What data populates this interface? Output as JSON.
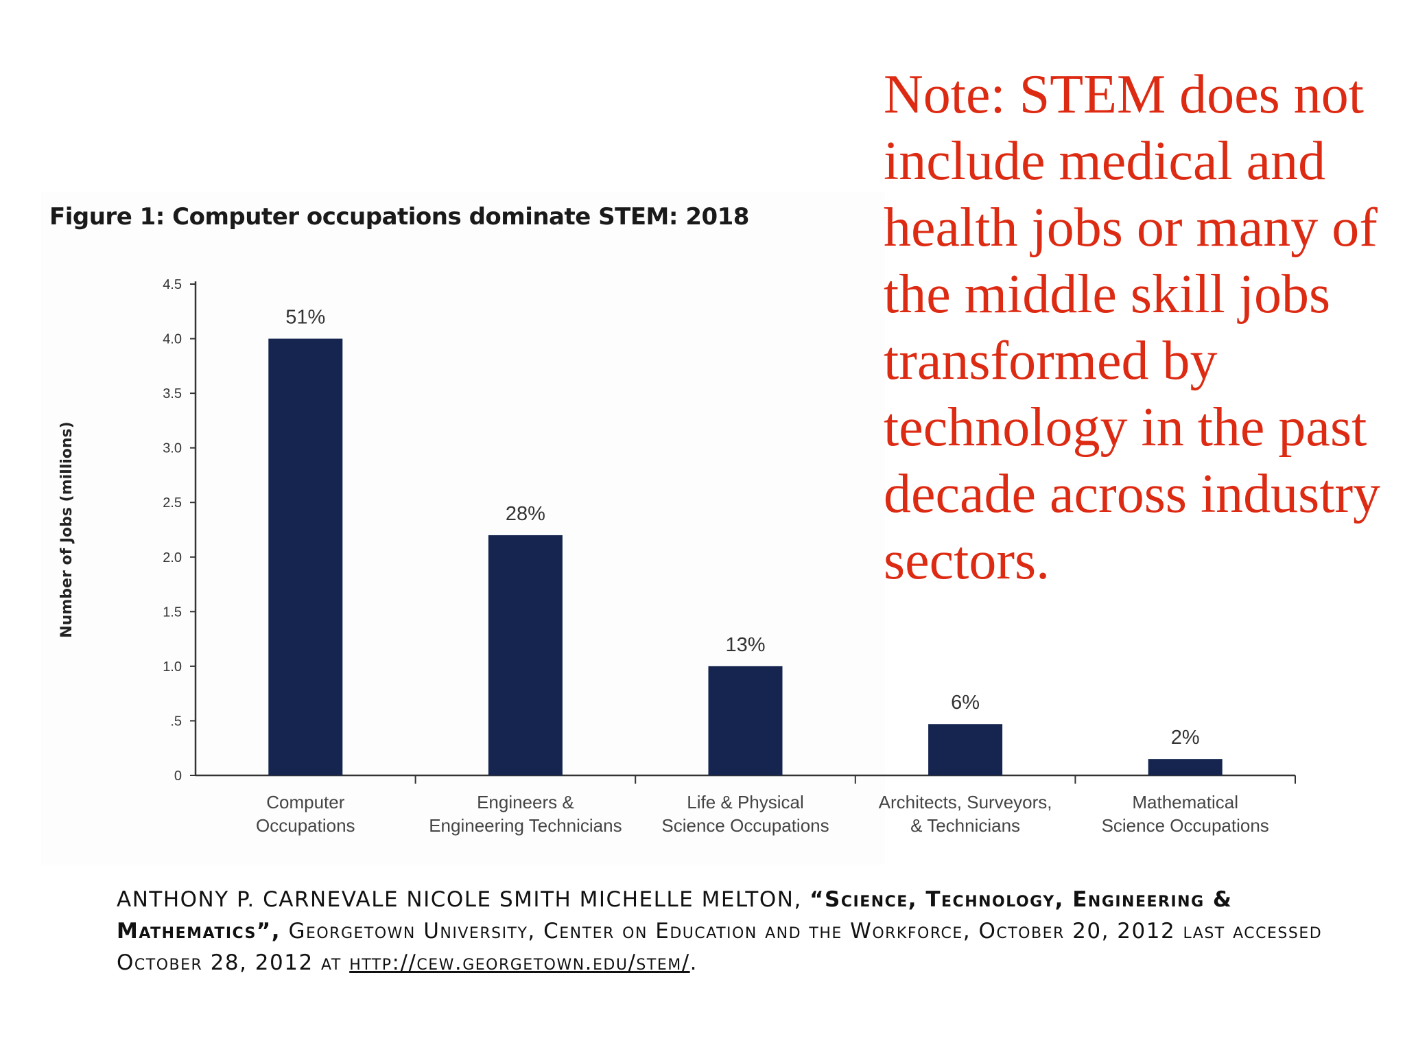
{
  "chart_data": {
    "type": "bar",
    "title": "Figure 1: Computer occupations dominate STEM: 2018",
    "ylabel": "Number of Jobs (millions)",
    "xlabel": "",
    "ylim": [
      0,
      4.5
    ],
    "yticks": [
      {
        "value": 0,
        "label": "0"
      },
      {
        "value": 0.5,
        "label": ".5"
      },
      {
        "value": 1.0,
        "label": "1.0"
      },
      {
        "value": 1.5,
        "label": "1.5"
      },
      {
        "value": 2.0,
        "label": "2.0"
      },
      {
        "value": 2.5,
        "label": "2.5"
      },
      {
        "value": 3.0,
        "label": "3.0"
      },
      {
        "value": 3.5,
        "label": "3.5"
      },
      {
        "value": 4.0,
        "label": "4.0"
      },
      {
        "value": 4.5,
        "label": "4.5"
      }
    ],
    "categories": [
      [
        "Computer",
        "Occupations"
      ],
      [
        "Engineers &",
        "Engineering Technicians"
      ],
      [
        "Life & Physical",
        "Science Occupations"
      ],
      [
        "Architects, Surveyors,",
        "& Technicians"
      ],
      [
        "Mathematical",
        "Science Occupations"
      ]
    ],
    "values": [
      4.0,
      2.2,
      1.0,
      0.47,
      0.15
    ],
    "data_labels": [
      "51%",
      "28%",
      "13%",
      "6%",
      "2%"
    ],
    "bar_color": "#162550",
    "grid": false,
    "legend": "none"
  },
  "note": "Note: STEM does not include medical and health jobs or many of the middle skill jobs transformed by technology in the past decade across industry sectors.",
  "note_color": "#dd2a12",
  "citation": {
    "authors": "Anthony P. Carnevale Nicole Smith Michelle Melton,",
    "work_title": "“Science, Technology, Engineering & Mathematics”,",
    "publisher": "Georgetown University, Center on Education and the Workforce, October 20, 2012 last accessed October 28, 2012 at",
    "url": "http://cew.georgetown.edu/stem/",
    "end": "."
  }
}
